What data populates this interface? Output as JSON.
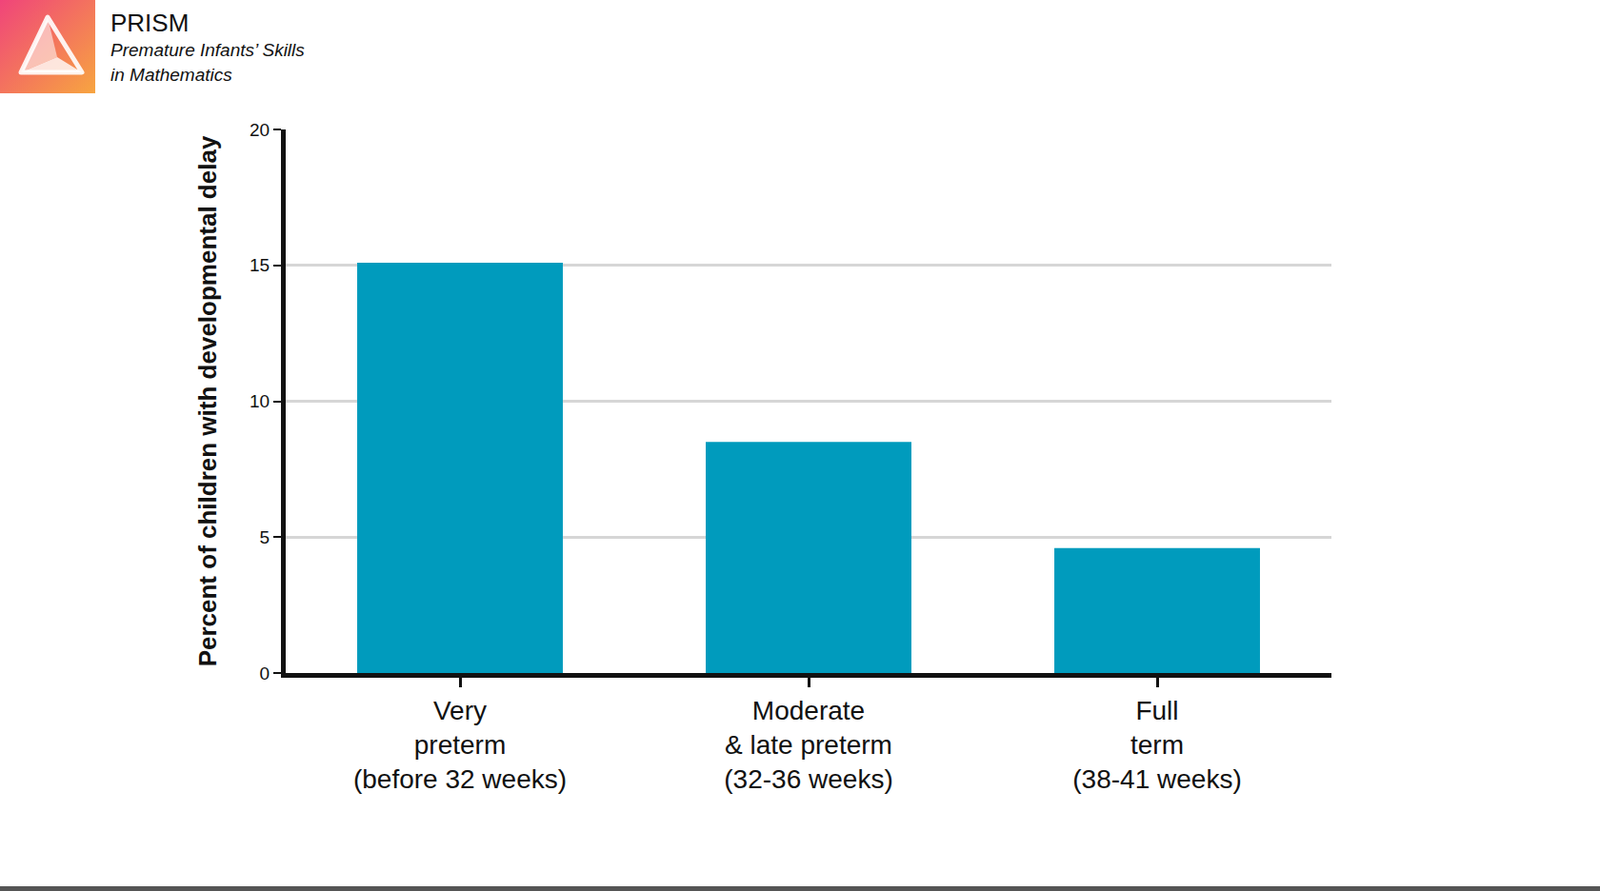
{
  "header": {
    "title": "PRISM",
    "subtitle": "Premature Infants’ Skills\nin Mathematics"
  },
  "chart_data": {
    "type": "bar",
    "y_label": "Percent of children with developmental delay",
    "categories": [
      "Very\npreterm\n(before 32 weeks)",
      "Moderate\n& late preterm\n(32-36 weeks)",
      "Full\nterm\n(38-41 weeks)"
    ],
    "values": [
      15.1,
      8.5,
      4.6
    ],
    "color": "#009bbd",
    "ylim": [
      0,
      20
    ],
    "yticks": [
      0,
      5,
      10,
      15,
      20
    ],
    "grid": true
  }
}
